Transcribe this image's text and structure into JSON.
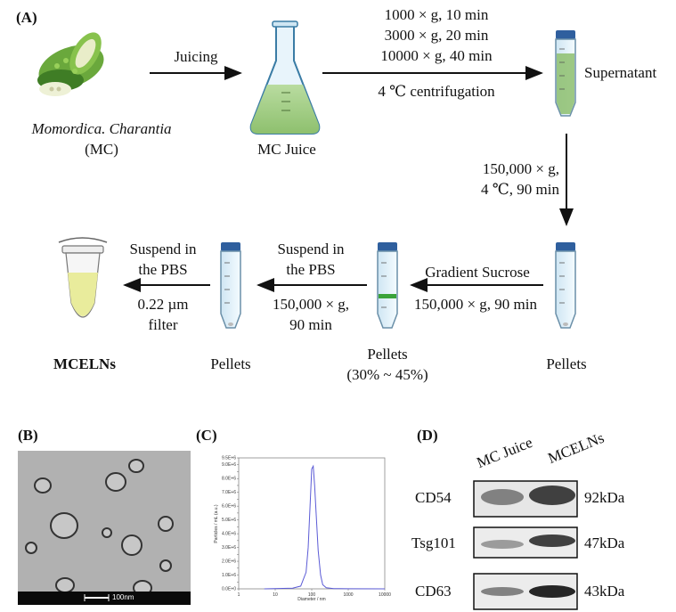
{
  "panelA": {
    "label": "(A)",
    "plant_name": "Momordica. Charantia",
    "plant_abbr": "(MC)",
    "juicing": "Juicing",
    "mc_juice": "MC Juice",
    "centrifuge_lines": [
      "1000 × g, 10 min",
      "3000 × g, 20 min",
      "10000 × g, 40 min"
    ],
    "centrifuge_temp": "4 ℃ centrifugation",
    "supernatant": "Supernatant",
    "ultra1_lines": [
      "150,000 × g,",
      "4 ℃, 90 min"
    ],
    "pellets_right": "Pellets",
    "gradient": "Gradient Sucrose",
    "gradient_spin": "150,000 × g, 90 min",
    "pellets_mid": "Pellets",
    "pellets_mid_pct": "(30% ~ 45%)",
    "suspend1_lines": [
      "Suspend in",
      "the PBS"
    ],
    "spin2_lines": [
      "150,000 × g,",
      "90 min"
    ],
    "pellets_left": "Pellets",
    "suspend2_lines": [
      "Suspend in",
      "the PBS"
    ],
    "filter_lines": [
      "0.22 µm",
      "filter"
    ],
    "product": "MCELNs"
  },
  "panelB": {
    "label": "(B)",
    "scalebar": "100nm"
  },
  "panelC": {
    "label": "(C)",
    "ylabel": "Particles / mL (a.u.)",
    "xlabel": "Diameter / nm"
  },
  "panelD": {
    "label": "(D)",
    "columns": [
      "MC Juice",
      "MCELNs"
    ],
    "bands": [
      {
        "name": "CD54",
        "mw": "92kDa"
      },
      {
        "name": "Tsg101",
        "mw": "47kDa"
      },
      {
        "name": "CD63",
        "mw": "43kDa"
      }
    ]
  },
  "chart_data": {
    "type": "line",
    "title": "",
    "xlabel": "Diameter / nm",
    "ylabel": "Particles / mL (a.u.)",
    "x_scale": "log",
    "xlim": [
      1,
      10000
    ],
    "ylim": [
      0,
      9500000
    ],
    "x_ticks": [
      "1",
      "10",
      "100",
      "1000",
      "10000"
    ],
    "y_ticks": [
      "0.0E+0",
      "5.0E+5",
      "1.0E+6",
      "1.5E+6",
      "2.0E+6",
      "2.5E+6",
      "3.0E+6",
      "3.5E+6",
      "4.0E+6",
      "4.5E+6",
      "5.0E+6",
      "5.5E+6",
      "6.0E+6",
      "6.5E+6",
      "7.0E+6",
      "7.5E+6",
      "8.0E+6",
      "8.5E+6",
      "9.0E+6",
      "9.5E+6"
    ],
    "x": [
      5,
      30,
      50,
      70,
      80,
      90,
      100,
      110,
      120,
      135,
      150,
      175,
      200,
      250,
      400,
      1000,
      10000
    ],
    "y": [
      0,
      50000,
      200000,
      1200000,
      3000000,
      6000000,
      8700000,
      8900000,
      7500000,
      5000000,
      2800000,
      1000000,
      300000,
      80000,
      20000,
      5000,
      0
    ],
    "grid": false,
    "color": "#5b5bd6"
  }
}
